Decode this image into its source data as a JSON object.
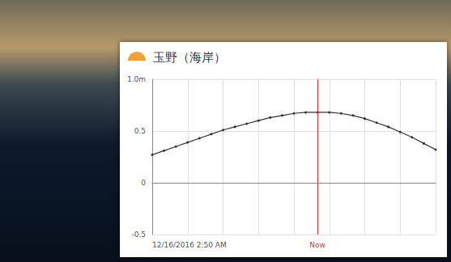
{
  "chart_data": {
    "type": "line",
    "title": "玉野（海岸）",
    "categories": [
      "12/16/2016 2:50 AM",
      null,
      null,
      null,
      null,
      null,
      null,
      null,
      null,
      null,
      null,
      null,
      null,
      null,
      "Now",
      null,
      null,
      null,
      null,
      null,
      null,
      null,
      null,
      null,
      null
    ],
    "values": [
      0.27,
      0.31,
      0.35,
      0.39,
      0.43,
      0.47,
      0.51,
      0.54,
      0.57,
      0.6,
      0.63,
      0.65,
      0.67,
      0.68,
      0.68,
      0.68,
      0.67,
      0.65,
      0.62,
      0.58,
      0.54,
      0.49,
      0.44,
      0.38,
      0.32
    ],
    "color": "#333333",
    "marker": "circle",
    "ylim": [
      -0.5,
      1
    ],
    "yticks": [
      -0.5,
      0,
      0.5,
      {
        "value": 1,
        "label": "1.0m"
      }
    ],
    "grid": true
  }
}
